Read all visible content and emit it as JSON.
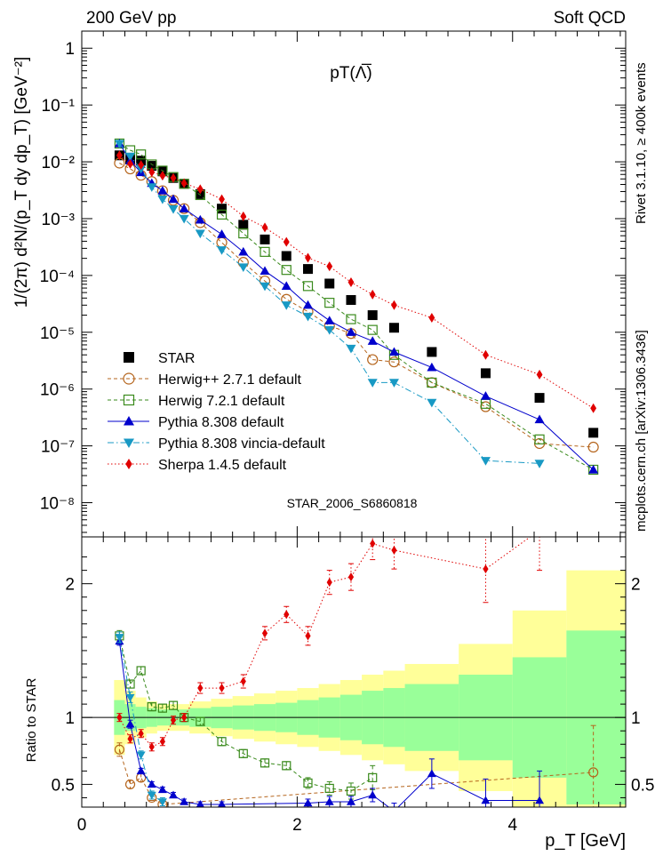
{
  "header": {
    "left": "200 GeV pp",
    "right": "Soft QCD",
    "plot_title": "pT(Λ̅)",
    "watermark": "STAR_2006_S6860818",
    "side_top": "Rivet 3.1.10, ≥ 400k events",
    "side_bottom": "mcplots.cern.ch [arXiv:1306.3436]"
  },
  "colors": {
    "STAR": "#000000",
    "Herwig++ 2.7.1 default": "#b5651d",
    "Herwig 7.2.1 default": "#3a8a1c",
    "Pythia 8.308 default": "#0000cc",
    "Pythia 8.308 vincia-default": "#1899c4",
    "Sherpa 1.4.5 default": "#e00000",
    "band_inner": "#99ff99",
    "band_outer": "#ffff99"
  },
  "chart_data": [
    {
      "type": "scatter",
      "panel": "main",
      "ylabel": "1/(2π) d²N/(p_T dy dp_T) [GeV⁻²]",
      "xlim": [
        0,
        5.05
      ],
      "ylim": [
        2.5e-09,
        2
      ],
      "log_y": true,
      "xticks": [
        0,
        2,
        4
      ],
      "ytick_labels": [
        "1",
        "10⁻¹",
        "10⁻²",
        "10⁻³",
        "10⁻⁴",
        "10⁻⁵",
        "10⁻⁶",
        "10⁻⁷",
        "10⁻⁸"
      ],
      "legend_position": "lower-left",
      "series": [
        {
          "name": "STAR",
          "marker": "square",
          "line": "none",
          "x": [
            0.35,
            0.45,
            0.55,
            0.65,
            0.75,
            0.85,
            0.95,
            1.1,
            1.3,
            1.5,
            1.7,
            1.9,
            2.1,
            2.3,
            2.5,
            2.7,
            2.9,
            3.25,
            3.75,
            4.25,
            4.75
          ],
          "y": [
            0.013,
            0.011,
            0.0105,
            0.0085,
            0.0068,
            0.0052,
            0.0041,
            0.0027,
            0.0015,
            0.00078,
            0.00043,
            0.00022,
            0.00013,
            7.2e-05,
            3.7e-05,
            2e-05,
            1.2e-05,
            4.5e-06,
            1.9e-06,
            7e-07,
            1.7e-07
          ]
        },
        {
          "name": "Herwig++ 2.7.1 default",
          "marker": "open-circle",
          "line": "dashed",
          "x": [
            0.35,
            0.45,
            0.55,
            0.65,
            0.75,
            0.85,
            0.95,
            1.1,
            1.3,
            1.5,
            1.7,
            1.9,
            2.1,
            2.3,
            2.5,
            2.7,
            2.9,
            3.25,
            3.75,
            4.25,
            4.75
          ],
          "y": [
            0.0095,
            0.0075,
            0.0058,
            0.0045,
            0.0031,
            0.0021,
            0.0015,
            0.00085,
            0.00038,
            0.00017,
            8e-05,
            3.8e-05,
            2.3e-05,
            1.3e-05,
            9.5e-06,
            3.3e-06,
            3e-06,
            1.3e-06,
            4.9e-07,
            1.1e-07,
            9.5e-08
          ]
        },
        {
          "name": "Herwig 7.2.1 default",
          "marker": "open-square",
          "line": "dashed",
          "x": [
            0.35,
            0.45,
            0.55,
            0.65,
            0.75,
            0.85,
            0.95,
            1.1,
            1.3,
            1.5,
            1.7,
            1.9,
            2.1,
            2.3,
            2.5,
            2.7,
            2.9,
            3.25,
            3.75,
            4.25,
            4.75
          ],
          "y": [
            0.021,
            0.016,
            0.0135,
            0.009,
            0.007,
            0.0054,
            0.0041,
            0.0026,
            0.00118,
            0.00055,
            0.00026,
            0.000125,
            6.5e-05,
            3.3e-05,
            1.7e-05,
            1.1e-05,
            4e-06,
            1.3e-06,
            5.5e-07,
            1.3e-07,
            3.8e-08
          ]
        },
        {
          "name": "Pythia 8.308 default",
          "marker": "triangle-up",
          "line": "solid",
          "x": [
            0.35,
            0.45,
            0.55,
            0.65,
            0.75,
            0.85,
            0.95,
            1.1,
            1.3,
            1.5,
            1.7,
            1.9,
            2.1,
            2.3,
            2.5,
            2.7,
            2.9,
            3.25,
            3.75,
            4.25,
            4.75
          ],
          "y": [
            0.021,
            0.0105,
            0.0065,
            0.0042,
            0.0031,
            0.0022,
            0.0015,
            0.00095,
            0.00053,
            0.00026,
            0.00012,
            6.5e-05,
            3e-05,
            1.6e-05,
            1e-05,
            7e-06,
            4.5e-06,
            2.4e-06,
            7.5e-07,
            2.9e-07,
            3.8e-08
          ]
        },
        {
          "name": "Pythia 8.308 vincia-default",
          "marker": "triangle-down",
          "line": "dashdot",
          "x": [
            0.35,
            0.45,
            0.55,
            0.65,
            0.75,
            0.85,
            0.95,
            1.1,
            1.3,
            1.5,
            1.7,
            1.9,
            2.1,
            2.3,
            2.5,
            2.7,
            2.9,
            3.25,
            3.75,
            4.25
          ],
          "y": [
            0.021,
            0.0125,
            0.0075,
            0.0036,
            0.0022,
            0.00148,
            0.001,
            0.00055,
            0.00028,
            0.00014,
            6.5e-05,
            3e-05,
            1.9e-05,
            1.1e-05,
            5.2e-06,
            1.3e-06,
            1.3e-06,
            5.8e-07,
            5.5e-08,
            4.9e-08
          ]
        },
        {
          "name": "Sherpa 1.4.5 default",
          "marker": "diamond",
          "line": "dotted",
          "x": [
            0.35,
            0.45,
            0.55,
            0.65,
            0.75,
            0.85,
            0.95,
            1.1,
            1.3,
            1.5,
            1.7,
            1.9,
            2.1,
            2.3,
            2.5,
            2.7,
            2.9,
            3.25,
            3.75,
            4.25,
            4.75
          ],
          "y": [
            0.013,
            0.0092,
            0.0088,
            0.0066,
            0.0057,
            0.0052,
            0.0042,
            0.0033,
            0.0022,
            0.0011,
            0.0007,
            0.00039,
            0.000205,
            0.000145,
            7.6e-05,
            4.6e-05,
            3e-05,
            1.8e-05,
            4e-06,
            1.8e-06,
            4.6e-07
          ]
        }
      ]
    },
    {
      "type": "line",
      "panel": "ratio",
      "ylabel": "Ratio to STAR",
      "xlabel": "p_T [GeV]",
      "xlim": [
        0,
        5.05
      ],
      "ylim": [
        0.33,
        2.35
      ],
      "yticks": [
        0.5,
        1,
        2
      ],
      "reference_line": 1,
      "bands": {
        "x_edges": [
          0.3,
          0.4,
          0.5,
          0.6,
          0.7,
          0.8,
          0.9,
          1.0,
          1.2,
          1.4,
          1.6,
          1.8,
          2.0,
          2.2,
          2.4,
          2.6,
          2.8,
          3.0,
          3.5,
          4.0,
          4.5,
          5.05
        ],
        "inner": [
          0.13,
          0.1,
          0.08,
          0.07,
          0.06,
          0.06,
          0.06,
          0.07,
          0.08,
          0.09,
          0.1,
          0.11,
          0.13,
          0.15,
          0.17,
          0.2,
          0.22,
          0.25,
          0.32,
          0.45,
          0.65
        ],
        "outer": [
          0.28,
          0.2,
          0.15,
          0.12,
          0.1,
          0.1,
          0.1,
          0.12,
          0.14,
          0.16,
          0.18,
          0.2,
          0.22,
          0.25,
          0.28,
          0.32,
          0.35,
          0.4,
          0.55,
          0.8,
          1.1
        ]
      },
      "series": [
        {
          "name": "Herwig++ 2.7.1 default",
          "marker": "open-circle",
          "line": "dashed",
          "x": [
            0.35,
            0.45,
            0.55,
            0.65,
            0.75,
            4.75
          ],
          "y": [
            0.76,
            0.5,
            0.55,
            0.4,
            0.35,
            0.59
          ],
          "err": [
            0.05,
            0.03,
            0.03,
            0.02,
            0.02,
            0.35
          ]
        },
        {
          "name": "Herwig 7.2.1 default",
          "marker": "open-square",
          "line": "dashed",
          "x": [
            0.35,
            0.45,
            0.55,
            0.65,
            0.75,
            0.85,
            0.95,
            1.1,
            1.3,
            1.5,
            1.7,
            1.9,
            2.1,
            2.3,
            2.5,
            2.7
          ],
          "y": [
            1.61,
            1.25,
            1.35,
            1.08,
            1.07,
            1.09,
            1.0,
            0.97,
            0.82,
            0.73,
            0.66,
            0.64,
            0.51,
            0.47,
            0.45,
            0.55
          ],
          "err": [
            0.04,
            0.03,
            0.03,
            0.03,
            0.03,
            0.03,
            0.03,
            0.03,
            0.03,
            0.03,
            0.03,
            0.03,
            0.04,
            0.05,
            0.06,
            0.09
          ]
        },
        {
          "name": "Pythia 8.308 default",
          "marker": "triangle-up",
          "line": "solid",
          "x": [
            0.35,
            0.45,
            0.55,
            0.65,
            0.75,
            0.85,
            0.95,
            1.1,
            1.3,
            2.1,
            2.3,
            2.5,
            2.7,
            2.9,
            3.25,
            3.75,
            4.25
          ],
          "y": [
            1.57,
            0.95,
            0.6,
            0.5,
            0.46,
            0.42,
            0.37,
            0.35,
            0.35,
            0.36,
            0.37,
            0.37,
            0.42,
            0.3,
            0.58,
            0.38,
            0.38
          ],
          "err": [
            0.03,
            0.03,
            0.02,
            0.02,
            0.02,
            0.02,
            0.02,
            0.02,
            0.02,
            0.03,
            0.04,
            0.04,
            0.05,
            0.06,
            0.11,
            0.16,
            0.22
          ]
        },
        {
          "name": "Pythia 8.308 vincia-default",
          "marker": "triangle-down",
          "line": "dashdot",
          "x": [
            0.35,
            0.45,
            0.55,
            0.65,
            0.75
          ],
          "y": [
            1.6,
            1.15,
            0.72,
            0.42,
            0.37
          ],
          "err": [
            0.04,
            0.04,
            0.03,
            0.03,
            0.03
          ]
        },
        {
          "name": "Sherpa 1.4.5 default",
          "marker": "diamond",
          "line": "dotted",
          "x": [
            0.35,
            0.45,
            0.55,
            0.65,
            0.75,
            0.85,
            0.95,
            1.1,
            1.3,
            1.5,
            1.7,
            1.9,
            2.1,
            2.3,
            2.5,
            2.7,
            2.9,
            3.75,
            4.25
          ],
          "y": [
            1.0,
            0.84,
            0.88,
            0.78,
            0.82,
            0.98,
            1.0,
            1.22,
            1.22,
            1.27,
            1.63,
            1.77,
            1.61,
            2.01,
            2.05,
            2.3,
            2.25,
            2.11,
            2.4
          ],
          "err": [
            0.03,
            0.03,
            0.03,
            0.03,
            0.03,
            0.03,
            0.03,
            0.04,
            0.04,
            0.05,
            0.05,
            0.06,
            0.07,
            0.09,
            0.1,
            0.12,
            0.14,
            0.25,
            0.3
          ]
        }
      ]
    }
  ]
}
